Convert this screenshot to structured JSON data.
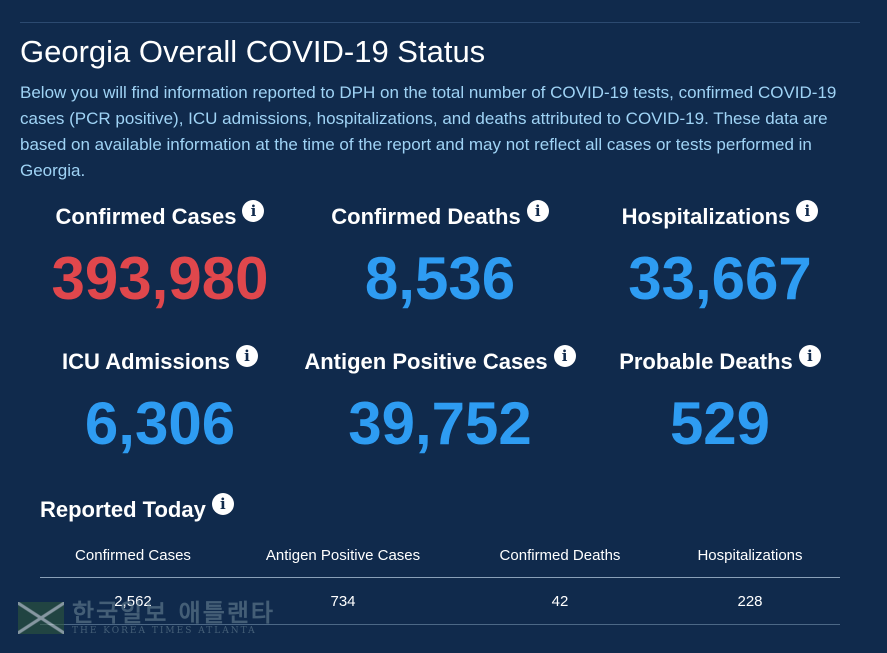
{
  "page": {
    "title": "Georgia Overall COVID-19 Status",
    "intro": "Below you will find information reported to DPH on the total number of COVID-19 tests, confirmed COVID-19 cases (PCR positive), ICU admissions, hospitalizations, and deaths attributed to COVID-19. These data are based on available information at the time of the report and may not reflect all cases or tests performed in Georgia."
  },
  "stats": {
    "confirmed_cases": {
      "label": "Confirmed Cases",
      "value": "393,980"
    },
    "confirmed_deaths": {
      "label": "Confirmed Deaths",
      "value": "8,536"
    },
    "hospitalizations": {
      "label": "Hospitalizations",
      "value": "33,667"
    },
    "icu_admissions": {
      "label": "ICU Admissions",
      "value": "6,306"
    },
    "antigen_positive": {
      "label": "Antigen Positive Cases",
      "value": "39,752"
    },
    "probable_deaths": {
      "label": "Probable Deaths",
      "value": "529"
    }
  },
  "info_glyph": "i",
  "reported_today": {
    "title": "Reported Today",
    "headers": [
      "Confirmed Cases",
      "Antigen Positive Cases",
      "Confirmed Deaths",
      "Hospitalizations"
    ],
    "values": [
      "2,562",
      "734",
      "42",
      "228"
    ]
  },
  "watermark": {
    "korean": "한국일보 애틀랜타",
    "english": "THE KOREA TIMES ATLANTA"
  },
  "colors": {
    "background": "#102a4c",
    "accent_red": "#e0474c",
    "accent_blue": "#2e9cf2",
    "intro_text": "#9fd3f5"
  }
}
